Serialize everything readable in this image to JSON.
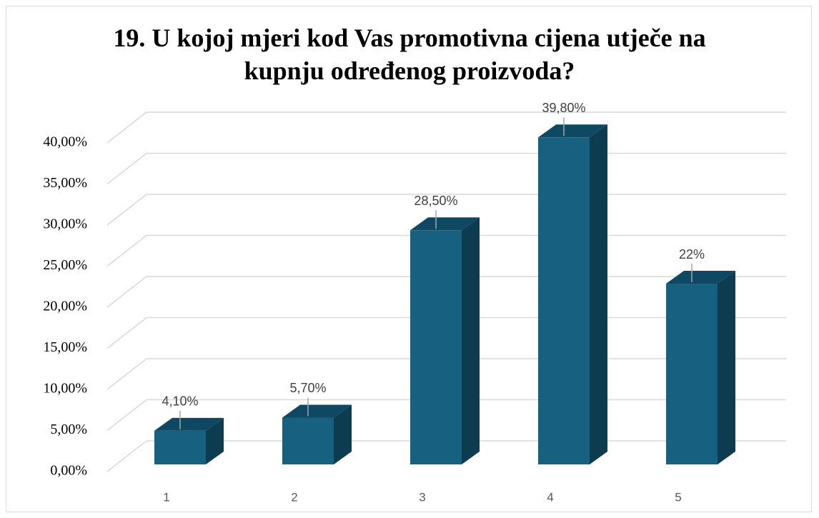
{
  "chart_data": {
    "type": "bar3d",
    "title": "19. U kojoj mjeri kod Vas promotivna cijena utječe na kupnju određenog proizvoda?",
    "categories": [
      "1",
      "2",
      "3",
      "4",
      "5"
    ],
    "values": [
      4.1,
      5.7,
      28.5,
      39.8,
      22
    ],
    "value_labels": [
      "4,10%",
      "5,70%",
      "28,50%",
      "39,80%",
      "22%"
    ],
    "color": "#17607f",
    "ylim": [
      0,
      40
    ],
    "yticks": [
      {
        "value": 0,
        "label": "0,00%"
      },
      {
        "value": 5,
        "label": "5,00%"
      },
      {
        "value": 10,
        "label": "10,00%"
      },
      {
        "value": 15,
        "label": "15,00%"
      },
      {
        "value": 20,
        "label": "20,00%"
      },
      {
        "value": 25,
        "label": "25,00%"
      },
      {
        "value": 30,
        "label": "30,00%"
      },
      {
        "value": 35,
        "label": "35,00%"
      },
      {
        "value": 40,
        "label": "40,00%"
      }
    ],
    "grid": true
  }
}
